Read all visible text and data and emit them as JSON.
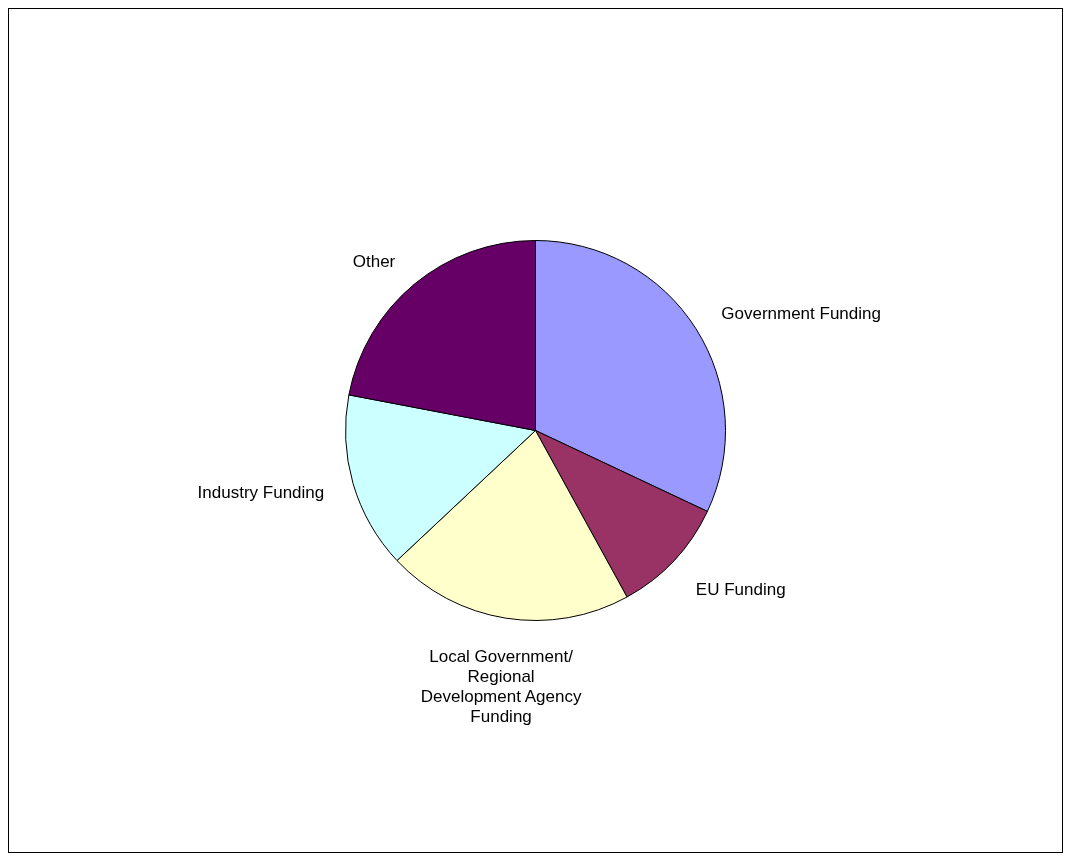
{
  "chart_data": {
    "type": "pie",
    "categories": [
      "Government Funding",
      "EU Funding",
      "Local Government/ Regional Development Agency Funding",
      "Industry Funding",
      "Other"
    ],
    "values": [
      32,
      10,
      21,
      15,
      22
    ],
    "colors": [
      "#9999ff",
      "#993366",
      "#ffffcc",
      "#ccffff",
      "#660066"
    ],
    "legend": false
  }
}
